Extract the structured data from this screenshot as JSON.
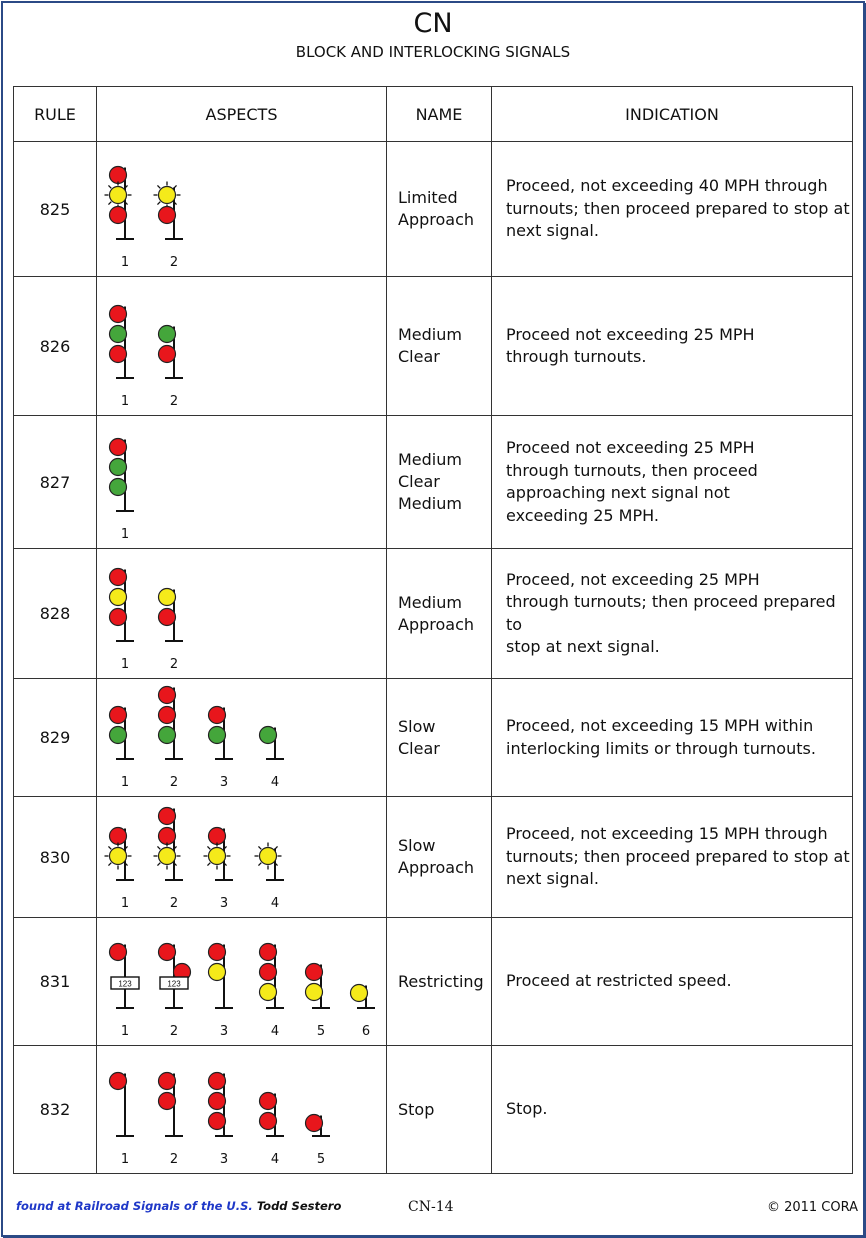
{
  "header": {
    "title": "CN",
    "subtitle": "BLOCK AND INTERLOCKING SIGNALS"
  },
  "columns": {
    "rule": "RULE",
    "aspects": "ASPECTS",
    "name": "NAME",
    "indication": "INDICATION"
  },
  "colors": {
    "red": "#e8161c",
    "yellow": "#f5ea1a",
    "green": "#44a63b",
    "border": "#2b4a86"
  },
  "rows": [
    {
      "rule": "825",
      "name": "Limited\nApproach",
      "indication": "Proceed, not exceeding 40 MPH through\nturnouts; then proceed prepared to stop at\nnext signal.",
      "aspects": [
        {
          "label": "1",
          "heads": [
            {
              "c": "red"
            },
            {
              "c": "yellow",
              "flash": true
            },
            {
              "c": "red"
            }
          ]
        },
        {
          "label": "2",
          "heads": [
            {
              "c": "yellow",
              "flash": true
            },
            {
              "c": "red"
            }
          ]
        }
      ]
    },
    {
      "rule": "826",
      "name": "Medium\nClear",
      "indication": "Proceed not exceeding 25 MPH\nthrough turnouts.",
      "aspects": [
        {
          "label": "1",
          "heads": [
            {
              "c": "red"
            },
            {
              "c": "green"
            },
            {
              "c": "red"
            }
          ]
        },
        {
          "label": "2",
          "heads": [
            {
              "c": "green"
            },
            {
              "c": "red"
            }
          ]
        }
      ]
    },
    {
      "rule": "827",
      "name": "Medium\nClear\nMedium",
      "indication": "Proceed not exceeding 25 MPH\nthrough turnouts, then proceed\napproaching next signal not\nexceeding 25 MPH.",
      "aspects": [
        {
          "label": "1",
          "heads": [
            {
              "c": "red"
            },
            {
              "c": "green"
            },
            {
              "c": "green"
            }
          ]
        }
      ]
    },
    {
      "rule": "828",
      "name": "Medium\nApproach",
      "indication": "Proceed, not exceeding 25 MPH\nthrough turnouts; then proceed prepared to\nstop at next signal.",
      "aspects": [
        {
          "label": "1",
          "heads": [
            {
              "c": "red"
            },
            {
              "c": "yellow"
            },
            {
              "c": "red"
            }
          ]
        },
        {
          "label": "2",
          "heads": [
            {
              "c": "yellow"
            },
            {
              "c": "red"
            }
          ]
        }
      ]
    },
    {
      "rule": "829",
      "name": "Slow\nClear",
      "indication": "Proceed, not exceeding 15 MPH within\ninterlocking limits or through turnouts.",
      "aspects": [
        {
          "label": "1",
          "heads": [
            {
              "c": "red"
            },
            {
              "c": "green"
            }
          ]
        },
        {
          "label": "2",
          "heads": [
            {
              "c": "red"
            },
            {
              "c": "red"
            },
            {
              "c": "green"
            }
          ]
        },
        {
          "label": "3",
          "heads": [
            {
              "c": "red"
            },
            {
              "c": "green"
            }
          ]
        },
        {
          "label": "4",
          "heads": [
            {
              "c": "green"
            }
          ]
        }
      ]
    },
    {
      "rule": "830",
      "name": "Slow\nApproach",
      "indication": "Proceed, not exceeding 15 MPH through\nturnouts; then proceed prepared to stop at\nnext signal.",
      "aspects": [
        {
          "label": "1",
          "heads": [
            {
              "c": "red"
            },
            {
              "c": "yellow",
              "flash": true
            }
          ]
        },
        {
          "label": "2",
          "heads": [
            {
              "c": "red"
            },
            {
              "c": "red"
            },
            {
              "c": "yellow",
              "flash": true
            }
          ]
        },
        {
          "label": "3",
          "heads": [
            {
              "c": "red"
            },
            {
              "c": "yellow",
              "flash": true
            }
          ]
        },
        {
          "label": "4",
          "heads": [
            {
              "c": "yellow",
              "flash": true
            }
          ]
        }
      ]
    },
    {
      "rule": "831",
      "name": "Restricting",
      "indication": "Proceed at restricted speed.",
      "aspects": [
        {
          "label": "1",
          "heads": [
            {
              "c": "red"
            }
          ],
          "plate": "123"
        },
        {
          "label": "2",
          "heads": [
            {
              "c": "red"
            }
          ],
          "side": "red",
          "plate": "123"
        },
        {
          "label": "3",
          "heads": [
            {
              "c": "red"
            },
            {
              "c": "yellow"
            }
          ]
        },
        {
          "label": "4",
          "heads": [
            {
              "c": "red"
            },
            {
              "c": "red"
            },
            {
              "c": "yellow"
            }
          ]
        },
        {
          "label": "5",
          "heads": [
            {
              "c": "red"
            },
            {
              "c": "yellow"
            }
          ]
        },
        {
          "label": "6",
          "heads": [
            {
              "c": "yellow"
            }
          ]
        }
      ]
    },
    {
      "rule": "832",
      "name": "Stop",
      "indication": "Stop.",
      "aspects": [
        {
          "label": "1",
          "heads": [
            {
              "c": "red"
            }
          ]
        },
        {
          "label": "2",
          "heads": [
            {
              "c": "red"
            },
            {
              "c": "red"
            }
          ]
        },
        {
          "label": "3",
          "heads": [
            {
              "c": "red"
            },
            {
              "c": "red"
            },
            {
              "c": "red"
            }
          ]
        },
        {
          "label": "4",
          "heads": [
            {
              "c": "red"
            },
            {
              "c": "red"
            }
          ]
        },
        {
          "label": "5",
          "heads": [
            {
              "c": "red"
            }
          ]
        }
      ]
    }
  ],
  "footer": {
    "source": "found at Railroad Signals of the U.S.",
    "author": "Todd Sestero",
    "page": "CN-14",
    "copyright": "© 2011 CORA"
  }
}
